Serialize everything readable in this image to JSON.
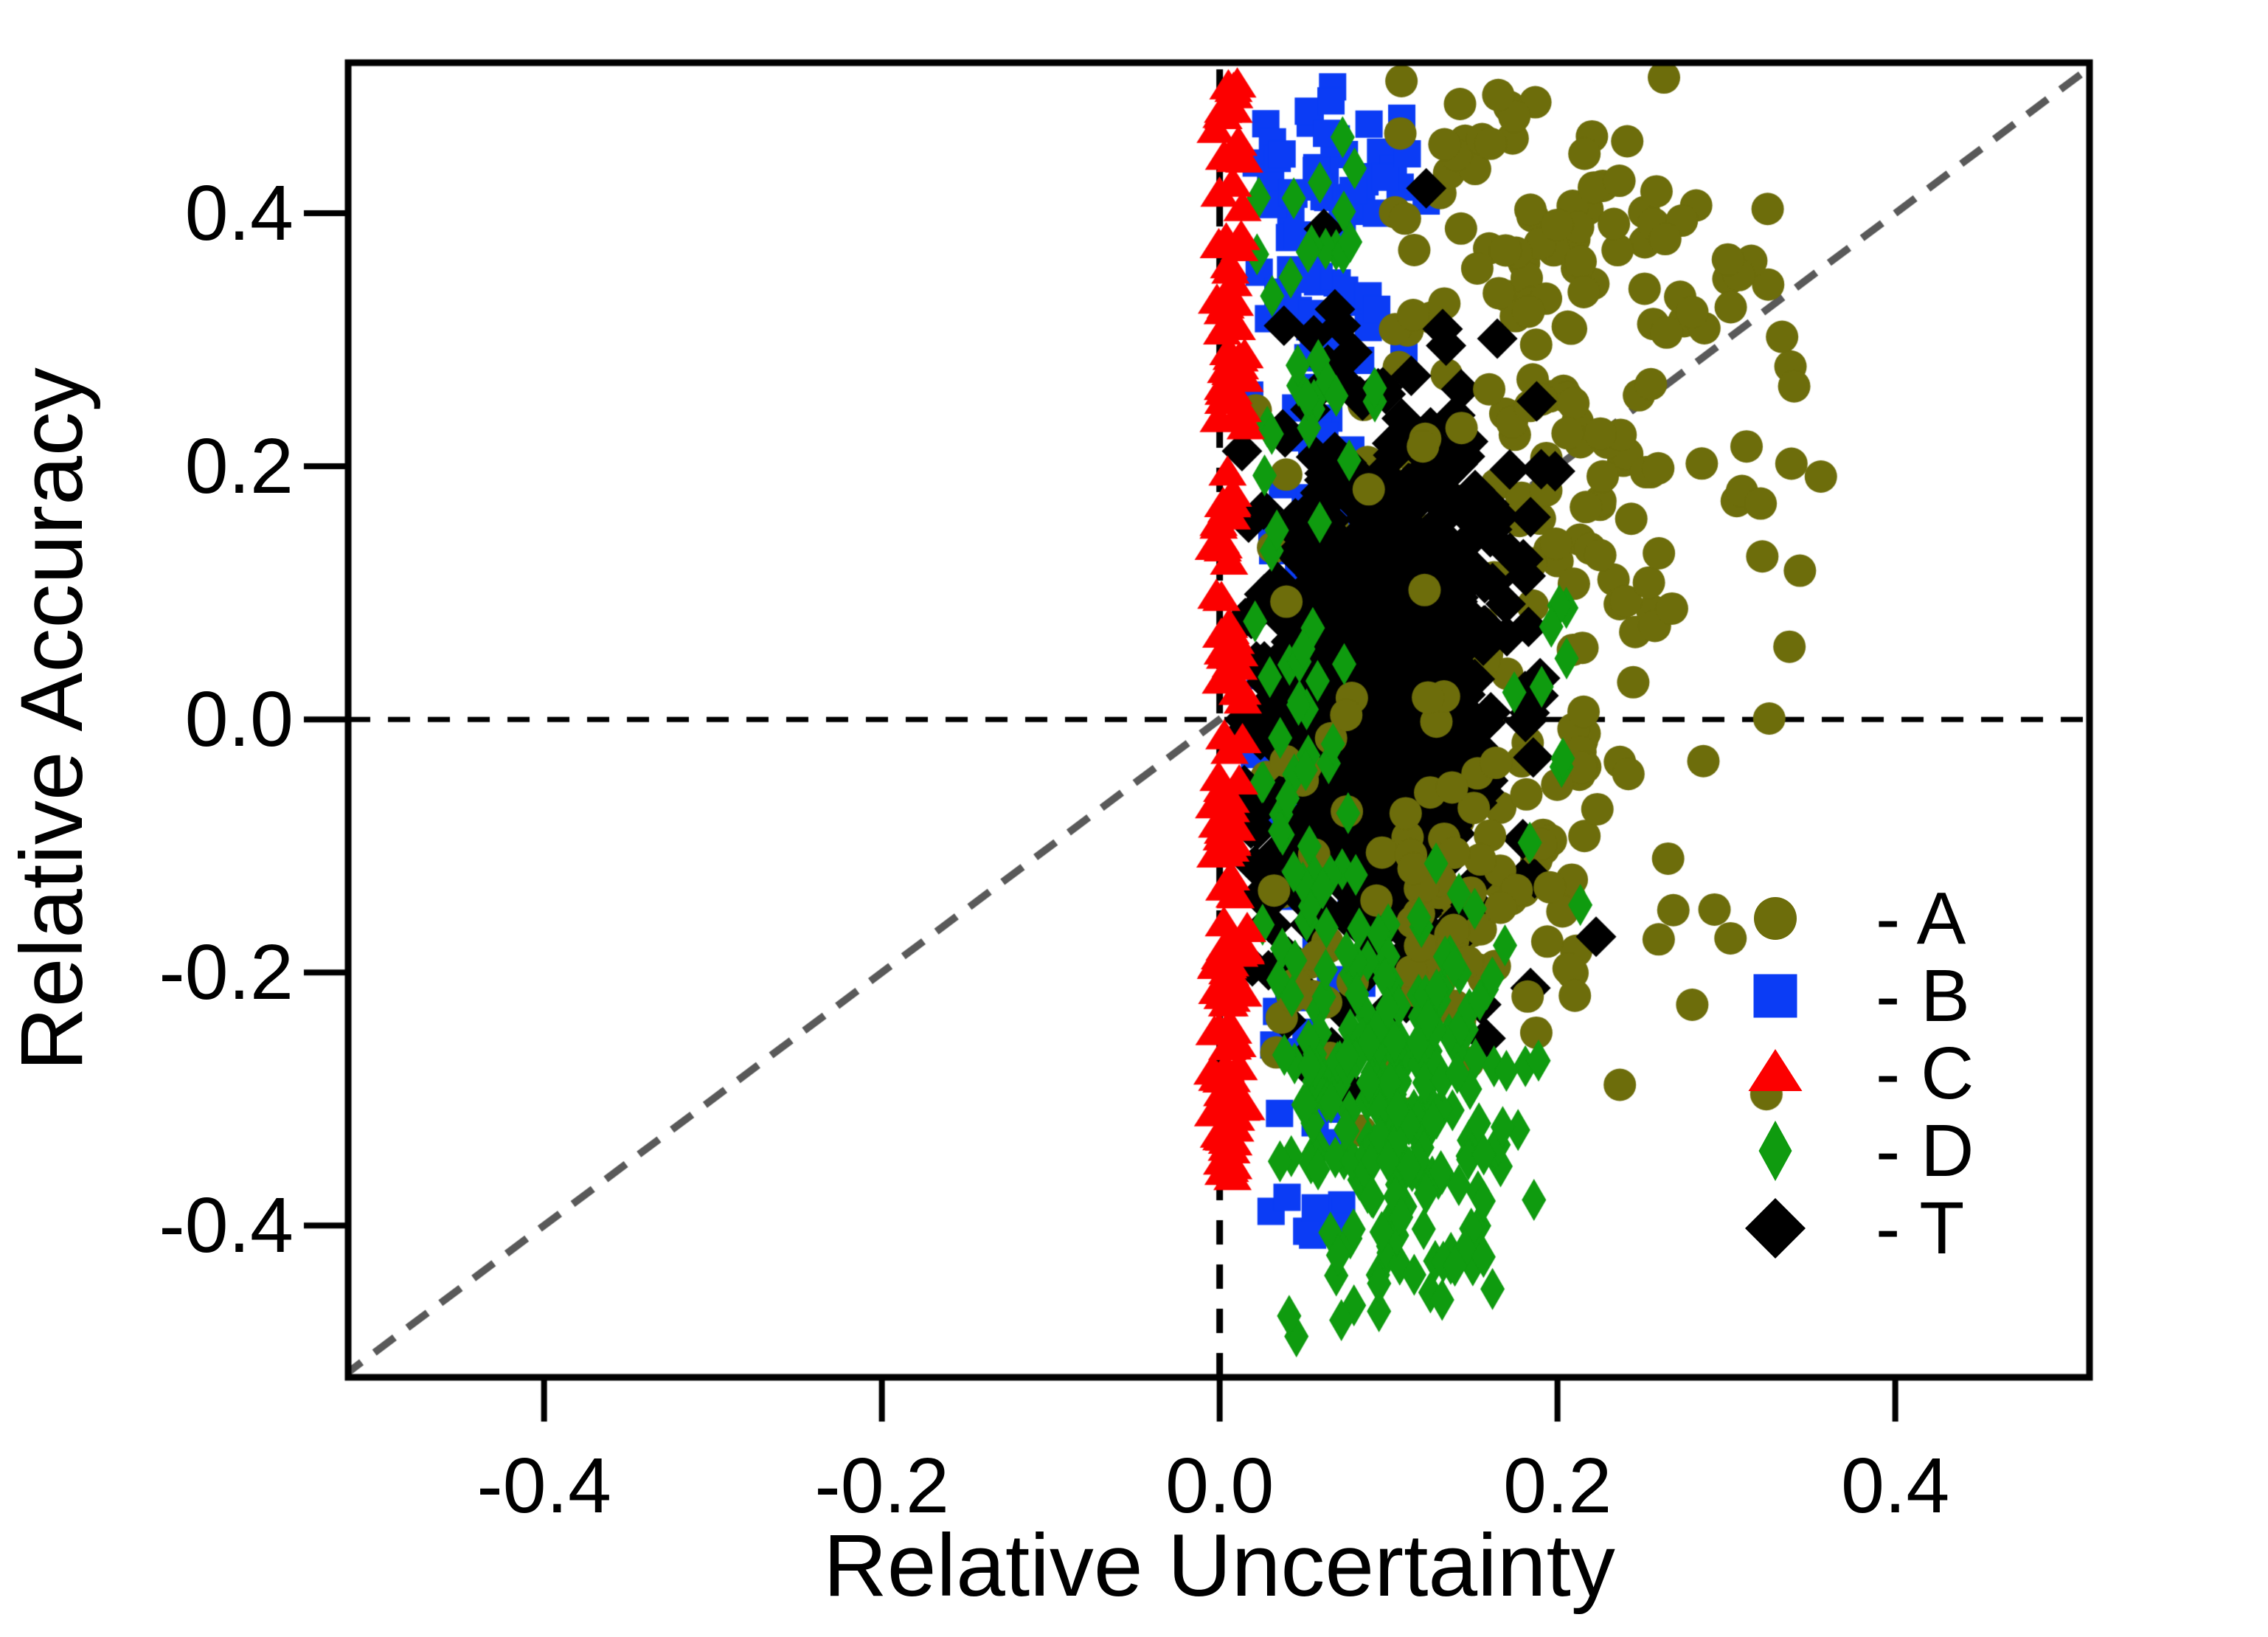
{
  "chart_data": {
    "type": "scatter",
    "title": "",
    "xlabel": "Relative Uncertainty",
    "ylabel": "Relative Accuracy",
    "xlim": [
      -0.516,
      0.515
    ],
    "ylim": [
      -0.52,
      0.519
    ],
    "grid": false,
    "points_estimated": true,
    "note": "Individual point coordinates are density estimates read from the image; each series is described by clusters with count n and normal (mu, s, clipped to min/max) or uniform (min/max) marginals in data units.",
    "x_ticks": [
      {
        "value": -0.4,
        "label": "-0.4"
      },
      {
        "value": -0.2,
        "label": "-0.2"
      },
      {
        "value": 0.0,
        "label": "0.0"
      },
      {
        "value": 0.2,
        "label": "0.2"
      },
      {
        "value": 0.4,
        "label": "0.4"
      }
    ],
    "y_ticks": [
      {
        "value": 0.4,
        "label": "0.4"
      },
      {
        "value": 0.2,
        "label": "0.2"
      },
      {
        "value": 0.0,
        "label": "0.0"
      },
      {
        "value": -0.2,
        "label": "-0.2"
      },
      {
        "value": -0.4,
        "label": "-0.4"
      }
    ],
    "reference_lines": [
      {
        "name": "zero-accuracy-line",
        "x1": -0.516,
        "y1": 0,
        "x2": 0.515,
        "y2": 0,
        "color": "#000000",
        "width": 7,
        "dash": [
          30,
          24
        ]
      },
      {
        "name": "zero-uncertainty-line",
        "x1": 0,
        "y1": -0.52,
        "x2": 0,
        "y2": 0.519,
        "color": "#000000",
        "width": 9,
        "dash": [
          33,
          27
        ]
      },
      {
        "name": "identity-line",
        "x1": -0.52,
        "y1": -0.52,
        "x2": 0.52,
        "y2": 0.52,
        "color": "#595959",
        "width": 10,
        "dash": [
          34,
          22
        ]
      }
    ],
    "legend": {
      "position": "lower right",
      "entries": [
        "- A",
        "- B",
        "- C",
        "- D",
        "- T"
      ]
    },
    "series": [
      {
        "name": "A",
        "legend_label": "- A",
        "marker": "circle",
        "color": "#6D6D0B",
        "marker_px": {
          "w": 44,
          "h": 44
        },
        "legend_marker_px": {
          "w": 58,
          "h": 58
        },
        "seed": 101,
        "clusters": [
          {
            "n": 120,
            "x": {
              "d": "n",
              "mu": 0.155,
              "s": 0.06,
              "min": 0.02,
              "max": 0.33
            },
            "y": {
              "d": "n",
              "mu": 0.02,
              "s": 0.13,
              "min": -0.22,
              "max": 0.3
            }
          },
          {
            "n": 110,
            "x": {
              "d": "n",
              "mu": 0.225,
              "s": 0.062,
              "min": 0.1,
              "max": 0.365
            },
            "y": {
              "d": "n",
              "mu": 0.33,
              "s": 0.1,
              "min": 0.08,
              "max": 0.51
            }
          },
          {
            "n": 70,
            "x": {
              "d": "n",
              "mu": 0.125,
              "s": 0.05,
              "min": 0.02,
              "max": 0.3
            },
            "y": {
              "d": "n",
              "mu": -0.15,
              "s": 0.1,
              "min": -0.36,
              "max": 0.02
            }
          },
          {
            "n": 50,
            "x": {
              "d": "u",
              "min": 0.02,
              "max": 0.36
            },
            "y": {
              "d": "u",
              "min": -0.3,
              "max": 0.5
            }
          }
        ]
      },
      {
        "name": "B",
        "legend_label": "- B",
        "marker": "square",
        "color": "#0B3CF5",
        "marker_px": {
          "w": 37,
          "h": 37
        },
        "legend_marker_px": {
          "w": 59,
          "h": 59
        },
        "seed": 202,
        "clusters": [
          {
            "n": 70,
            "x": {
              "d": "n",
              "mu": 0.05,
              "s": 0.022,
              "min": 0.012,
              "max": 0.115
            },
            "y": {
              "d": "u",
              "min": -0.3,
              "max": 0.505
            }
          },
          {
            "n": 40,
            "x": {
              "d": "n",
              "mu": 0.062,
              "s": 0.028,
              "min": 0.015,
              "max": 0.13
            },
            "y": {
              "d": "n",
              "mu": 0.36,
              "s": 0.1,
              "min": 0.12,
              "max": 0.51
            }
          },
          {
            "n": 15,
            "x": {
              "d": "n",
              "mu": 0.048,
              "s": 0.018,
              "min": 0.015,
              "max": 0.1
            },
            "y": {
              "d": "u",
              "min": -0.42,
              "max": -0.28
            }
          },
          {
            "n": 10,
            "x": {
              "d": "n",
              "mu": 0.09,
              "s": 0.03,
              "min": 0.03,
              "max": 0.16
            },
            "y": {
              "d": "u",
              "min": 0.3,
              "max": 0.51
            }
          }
        ]
      },
      {
        "name": "C",
        "legend_label": "- C",
        "marker": "triangle",
        "color": "#FC0000",
        "marker_px": {
          "w": 52,
          "h": 41
        },
        "legend_marker_px": {
          "w": 73,
          "h": 57
        },
        "seed": 303,
        "clusters": [
          {
            "n": 115,
            "x": {
              "d": "n",
              "mu": 0.006,
              "s": 0.005,
              "min": -0.0045,
              "max": 0.019
            },
            "y": {
              "d": "u",
              "min": -0.22,
              "max": 0.51
            }
          },
          {
            "n": 55,
            "x": {
              "d": "n",
              "mu": 0.005,
              "s": 0.0045,
              "min": -0.0045,
              "max": 0.017
            },
            "y": {
              "d": "u",
              "min": -0.368,
              "max": -0.18
            }
          }
        ]
      },
      {
        "name": "D",
        "legend_label": "- D",
        "marker": "diamond-thin",
        "color": "#0F9B0F",
        "marker_px": {
          "w": 33,
          "h": 57
        },
        "legend_marker_px": {
          "w": 45,
          "h": 82
        },
        "seed": 404,
        "clusters": [
          {
            "n": 225,
            "x": {
              "d": "n",
              "mu": 0.103,
              "s": 0.034,
              "min": 0.025,
              "max": 0.195
            },
            "y": {
              "d": "n",
              "mu": -0.305,
              "s": 0.092,
              "min": -0.5,
              "max": -0.1
            }
          },
          {
            "n": 55,
            "x": {
              "d": "n",
              "mu": 0.05,
              "s": 0.018,
              "min": 0.018,
              "max": 0.1
            },
            "y": {
              "d": "u",
              "min": -0.22,
              "max": 0.3
            }
          },
          {
            "n": 15,
            "x": {
              "d": "n",
              "mu": 0.05,
              "s": 0.02,
              "min": 0.02,
              "max": 0.1
            },
            "y": {
              "d": "u",
              "min": 0.3,
              "max": 0.47
            }
          },
          {
            "n": 10,
            "x": {
              "d": "u",
              "min": 0.15,
              "max": 0.22
            },
            "y": {
              "d": "u",
              "min": -0.15,
              "max": 0.1
            }
          }
        ]
      },
      {
        "name": "T",
        "legend_label": "- T",
        "marker": "diamond",
        "color": "#000000",
        "marker_px": {
          "w": 55,
          "h": 55
        },
        "legend_marker_px": {
          "w": 82,
          "h": 82
        },
        "seed": 505,
        "clusters": [
          {
            "n": 700,
            "x": {
              "d": "n",
              "mu": 0.093,
              "s": 0.03,
              "min": 0.012,
              "max": 0.2
            },
            "y": {
              "d": "n",
              "mu": 0.015,
              "s": 0.1,
              "min": -0.255,
              "max": 0.3
            }
          },
          {
            "n": 160,
            "x": {
              "d": "n",
              "mu": 0.1,
              "s": 0.045,
              "min": 0.012,
              "max": 0.24
            },
            "y": {
              "d": "n",
              "mu": 0.03,
              "s": 0.155,
              "min": -0.3,
              "max": 0.42
            }
          },
          {
            "n": 80,
            "x": {
              "d": "n",
              "mu": 0.085,
              "s": 0.035,
              "min": 0.01,
              "max": 0.18
            },
            "y": {
              "d": "n",
              "mu": -0.05,
              "s": 0.13,
              "min": -0.28,
              "max": 0.33
            }
          }
        ]
      }
    ],
    "draw_order": [
      {
        "series": "B"
      },
      {
        "series": "A",
        "from": 0,
        "to": 230
      },
      {
        "series": "T"
      },
      {
        "series": "A",
        "from": 230
      },
      {
        "series": "D"
      },
      {
        "series": "C"
      }
    ]
  }
}
